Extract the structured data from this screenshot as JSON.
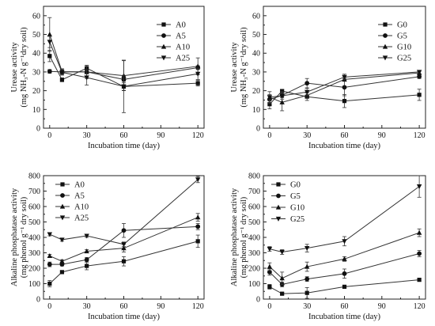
{
  "chart_data": [
    {
      "id": "a",
      "type": "line",
      "ylabel_lines": [
        "Urease activity",
        "(mg NH₃-N g⁻¹dry soil)"
      ],
      "xlabel": "Incubation time (day)",
      "xlim": [
        -5,
        125
      ],
      "ylim": [
        0,
        65
      ],
      "xticks": [
        0,
        30,
        60,
        90,
        120
      ],
      "yticks": [
        0,
        10,
        20,
        30,
        40,
        50,
        60
      ],
      "legend_position": "upper-right",
      "x": [
        0,
        10,
        30,
        60,
        120
      ],
      "series": [
        {
          "name": "A0",
          "marker": "square",
          "values": [
            38.5,
            25.8,
            32.0,
            22.2,
            24.0
          ],
          "errors": [
            3.0,
            1.0,
            1.5,
            2.0,
            1.5
          ]
        },
        {
          "name": "A5",
          "marker": "circle",
          "values": [
            30.3,
            30.0,
            30.0,
            26.0,
            32.3
          ],
          "errors": [
            1.0,
            1.0,
            1.0,
            1.0,
            1.0
          ]
        },
        {
          "name": "A10",
          "marker": "triangle-up",
          "values": [
            50.0,
            30.2,
            30.0,
            28.0,
            33.0
          ],
          "errors": [
            9.0,
            1.5,
            3.5,
            8.0,
            4.5
          ]
        },
        {
          "name": "A25",
          "marker": "triangle-down",
          "values": [
            46.0,
            29.8,
            27.0,
            22.3,
            29.0
          ],
          "errors": [
            3.0,
            1.5,
            4.0,
            14.0,
            3.0
          ]
        }
      ]
    },
    {
      "id": "b",
      "type": "line",
      "ylabel_lines": [
        "Urease activity",
        "(mg NH₃-N g⁻¹dry soil)"
      ],
      "xlabel": "Incubation time (day)",
      "xlim": [
        -5,
        125
      ],
      "ylim": [
        0,
        65
      ],
      "xticks": [
        0,
        30,
        60,
        90,
        120
      ],
      "yticks": [
        0,
        10,
        20,
        30,
        40,
        50,
        60
      ],
      "legend_position": "upper-right",
      "x": [
        0,
        10,
        30,
        60,
        120
      ],
      "series": [
        {
          "name": "G0",
          "marker": "square",
          "values": [
            12.8,
            19.8,
            16.8,
            14.5,
            17.8
          ],
          "errors": [
            2.5,
            0.8,
            2.0,
            3.5,
            3.0
          ]
        },
        {
          "name": "G5",
          "marker": "circle",
          "values": [
            15.3,
            17.5,
            24.0,
            21.8,
            27.5
          ],
          "errors": [
            2.0,
            2.0,
            2.5,
            4.5,
            1.0
          ]
        },
        {
          "name": "G10",
          "marker": "triangle-up",
          "values": [
            16.5,
            13.8,
            17.5,
            26.0,
            29.5
          ],
          "errors": [
            3.0,
            4.5,
            1.5,
            1.0,
            0.8
          ]
        },
        {
          "name": "G25",
          "marker": "triangle-down",
          "values": [
            16.5,
            17.3,
            19.3,
            27.3,
            30.0
          ],
          "errors": [
            1.5,
            1.0,
            2.0,
            1.5,
            0.8
          ]
        }
      ]
    },
    {
      "id": "c",
      "type": "line",
      "ylabel_lines": [
        "Alkaline phosphatase activity",
        "(mg phenol g⁻¹ dry soil)"
      ],
      "xlabel": "Incubation time (day)",
      "xlim": [
        -5,
        125
      ],
      "ylim": [
        0,
        800
      ],
      "xticks": [
        0,
        30,
        60,
        90,
        120
      ],
      "yticks": [
        0,
        100,
        200,
        300,
        400,
        500,
        600,
        700,
        800
      ],
      "legend_position": "upper-left",
      "x": [
        0,
        10,
        30,
        60,
        120
      ],
      "series": [
        {
          "name": "A0",
          "marker": "square",
          "values": [
            100,
            175,
            215,
            245,
            375
          ],
          "errors": [
            20,
            10,
            25,
            30,
            40
          ]
        },
        {
          "name": "A5",
          "marker": "circle",
          "values": [
            225,
            225,
            255,
            445,
            470
          ],
          "errors": [
            15,
            10,
            15,
            45,
            20
          ]
        },
        {
          "name": "A10",
          "marker": "triangle-up",
          "values": [
            280,
            245,
            310,
            330,
            530
          ],
          "errors": [
            10,
            10,
            10,
            25,
            25
          ]
        },
        {
          "name": "A25",
          "marker": "triangle-down",
          "values": [
            420,
            385,
            410,
            355,
            775
          ],
          "errors": [
            10,
            10,
            10,
            15,
            20
          ]
        }
      ]
    },
    {
      "id": "d",
      "type": "line",
      "ylabel_lines": [
        "Alkaline phosphatase activity",
        "(mg phenol g⁻¹ dry soil)"
      ],
      "xlabel": "Incubation time (day)",
      "xlim": [
        -5,
        125
      ],
      "ylim": [
        0,
        800
      ],
      "xticks": [
        0,
        30,
        60,
        90,
        120
      ],
      "yticks": [
        0,
        100,
        200,
        300,
        400,
        500,
        600,
        700,
        800
      ],
      "legend_position": "upper-left",
      "x": [
        0,
        10,
        30,
        60,
        120
      ],
      "series": [
        {
          "name": "G0",
          "marker": "square",
          "values": [
            80,
            35,
            40,
            80,
            125
          ],
          "errors": [
            15,
            5,
            35,
            10,
            8
          ]
        },
        {
          "name": "G5",
          "marker": "circle",
          "values": [
            175,
            95,
            130,
            165,
            295
          ],
          "errors": [
            20,
            15,
            15,
            30,
            20
          ]
        },
        {
          "name": "G10",
          "marker": "triangle-up",
          "values": [
            210,
            135,
            210,
            260,
            430
          ],
          "errors": [
            25,
            40,
            30,
            15,
            25
          ]
        },
        {
          "name": "G25",
          "marker": "triangle-down",
          "values": [
            325,
            305,
            330,
            375,
            730
          ],
          "errors": [
            15,
            15,
            25,
            30,
            70
          ]
        }
      ]
    }
  ]
}
